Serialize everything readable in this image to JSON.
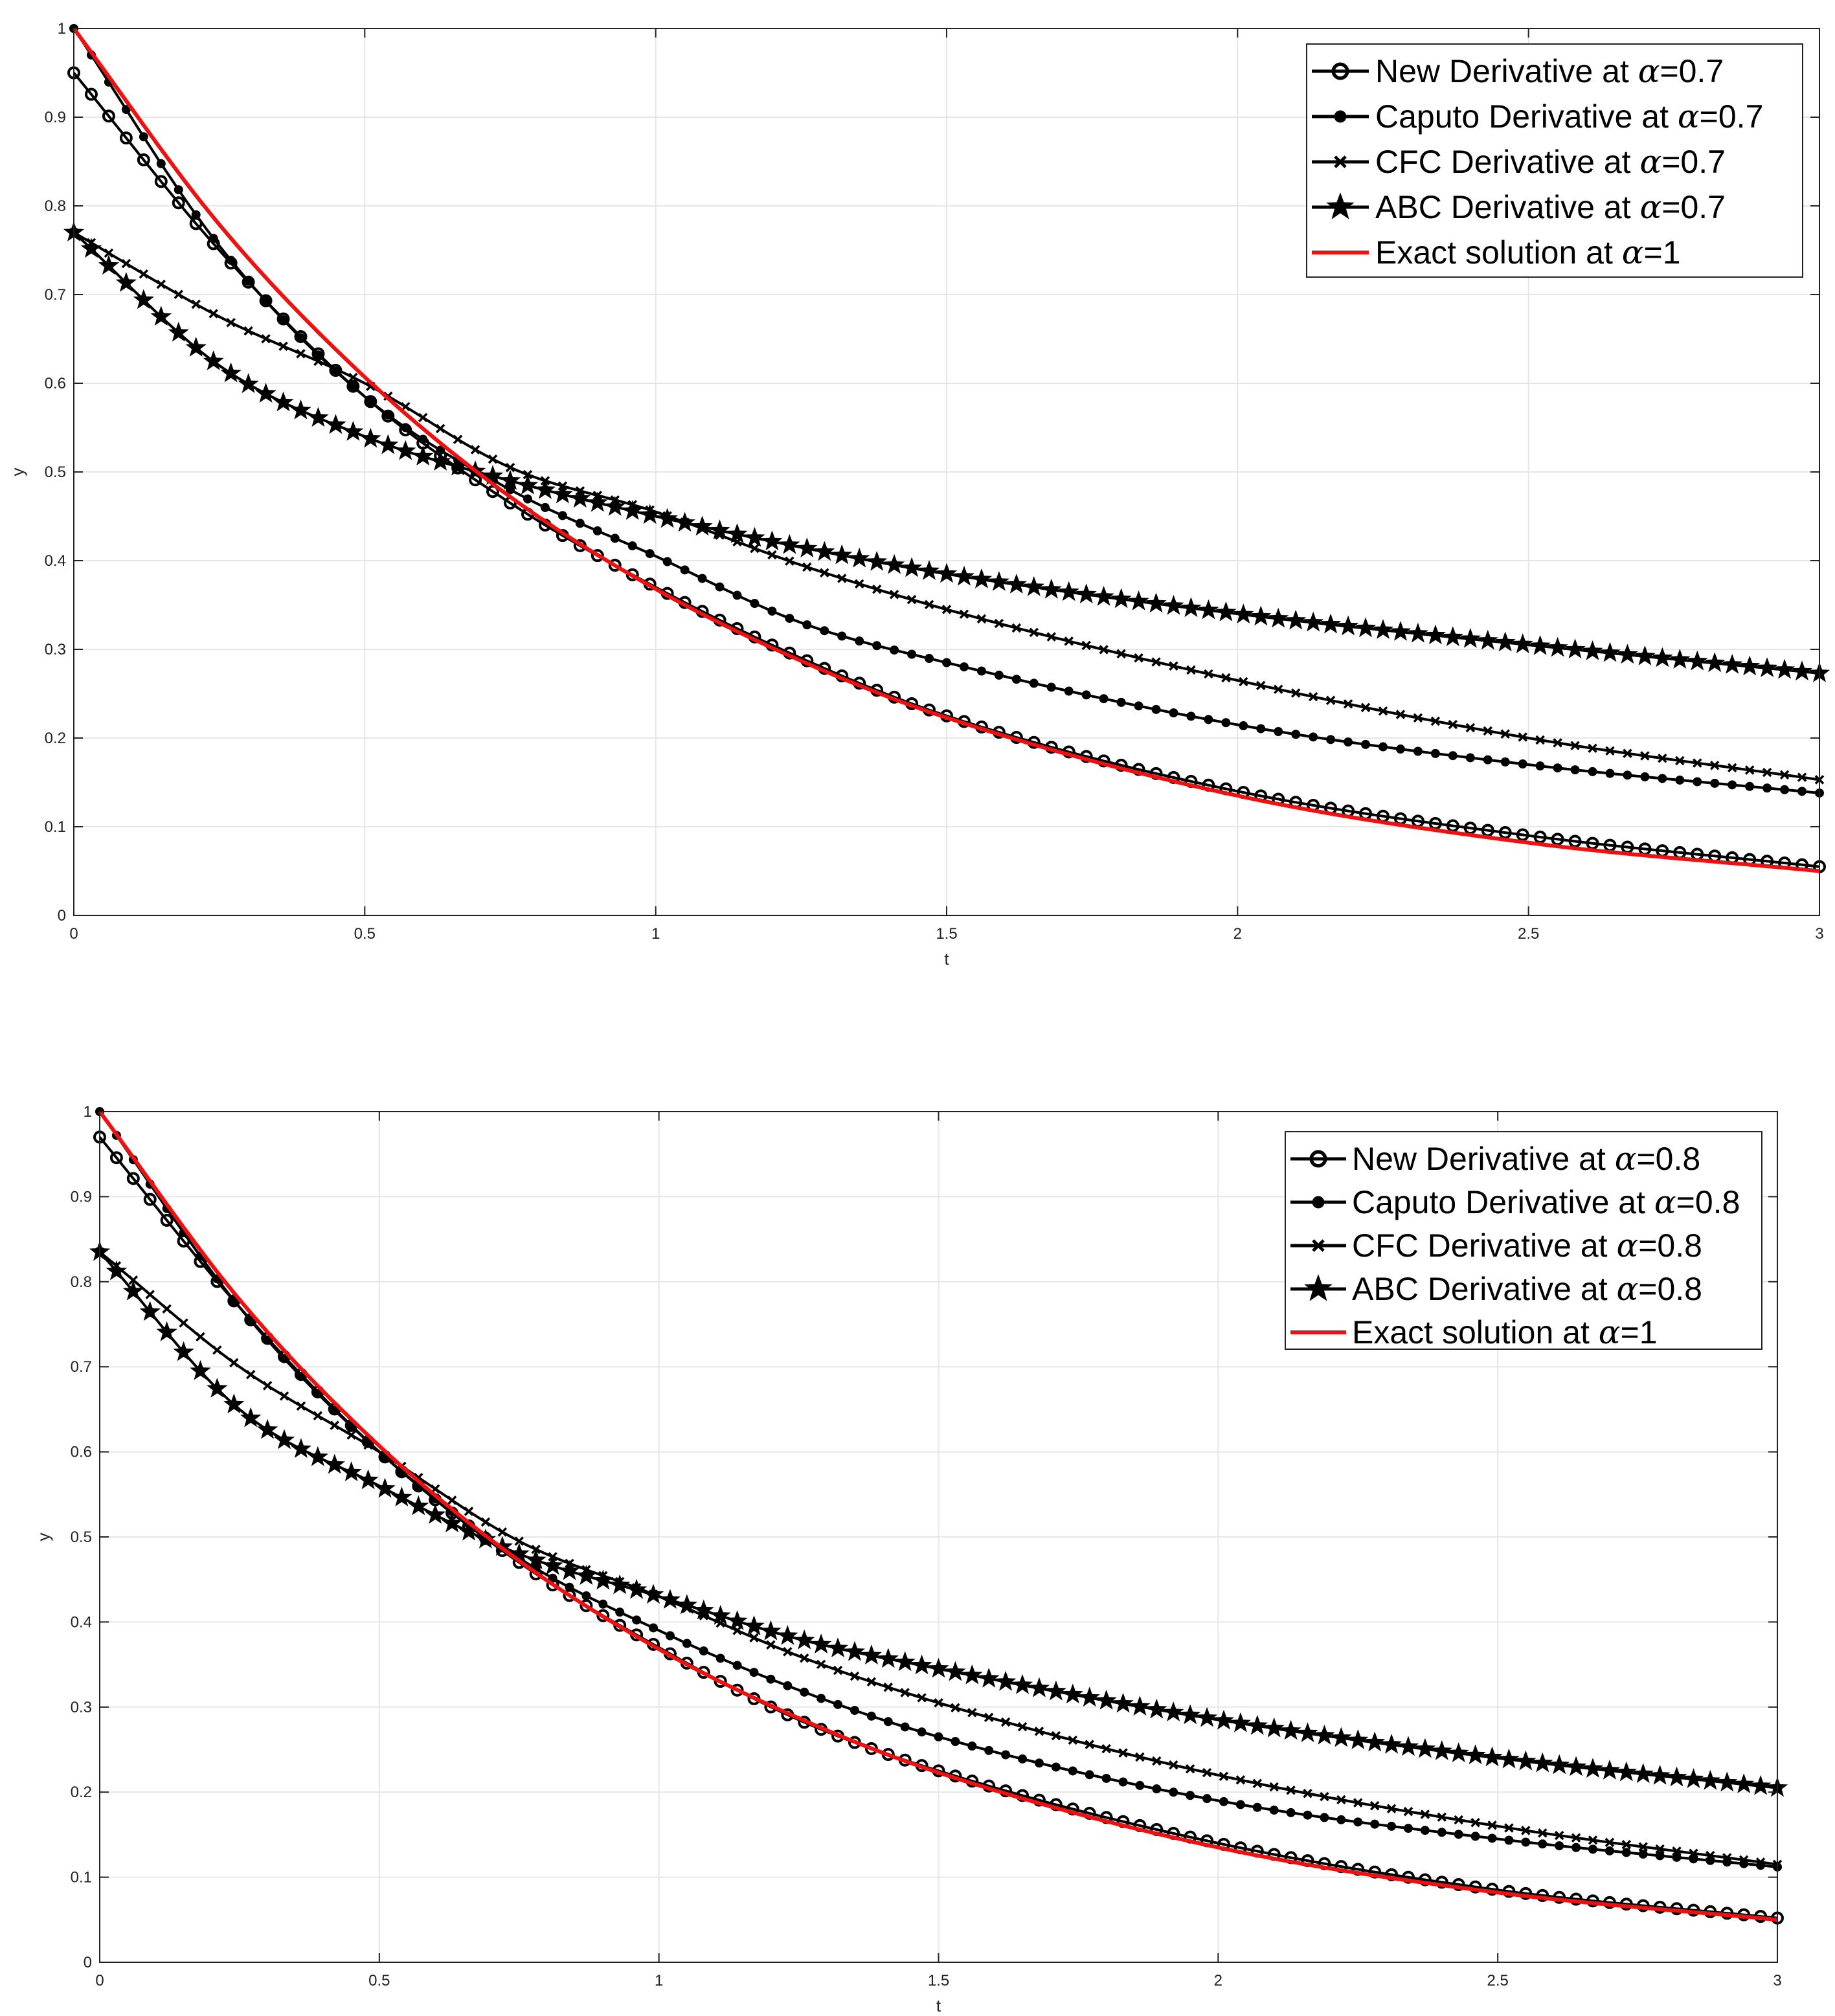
{
  "chart_data": [
    {
      "type": "line",
      "xlabel": "t",
      "ylabel": "y",
      "xlim": [
        0,
        3
      ],
      "ylim": [
        0,
        1
      ],
      "xticks": [
        "0",
        "0.5",
        "1",
        "1.5",
        "2",
        "2.5",
        "3"
      ],
      "yticks": [
        "0",
        "0.1",
        "0.2",
        "0.3",
        "0.4",
        "0.5",
        "0.6",
        "0.7",
        "0.8",
        "0.9",
        "1"
      ],
      "grid": true,
      "legend_position": "top-right",
      "series": [
        {
          "name": "New Derivative at ",
          "alpha_symbol": "α",
          "alpha_value": "=0.7",
          "marker": "open-circle",
          "color": "#000000",
          "x": [
            0,
            0.25,
            0.5,
            0.75,
            1.0,
            1.25,
            1.5,
            2.0,
            2.5,
            3.0
          ],
          "y": [
            0.95,
            0.75,
            0.585,
            0.465,
            0.37,
            0.29,
            0.225,
            0.14,
            0.09,
            0.055
          ]
        },
        {
          "name": "Caputo Derivative at ",
          "alpha_symbol": "α",
          "alpha_value": "=0.7",
          "marker": "filled-circle",
          "color": "#000000",
          "x": [
            0,
            0.25,
            0.5,
            0.75,
            1.0,
            1.25,
            1.5,
            2.0,
            2.5,
            3.0
          ],
          "y": [
            1.0,
            0.755,
            0.585,
            0.48,
            0.405,
            0.33,
            0.285,
            0.215,
            0.17,
            0.138
          ]
        },
        {
          "name": "CFC Derivative at ",
          "alpha_symbol": "α",
          "alpha_value": "=0.7",
          "marker": "x",
          "color": "#000000",
          "x": [
            0,
            0.25,
            0.5,
            0.75,
            1.0,
            1.25,
            1.5,
            2.0,
            2.5,
            3.0
          ],
          "y": [
            0.77,
            0.675,
            0.6,
            0.505,
            0.455,
            0.395,
            0.345,
            0.265,
            0.2,
            0.153
          ]
        },
        {
          "name": "ABC Derivative at ",
          "alpha_symbol": "α",
          "alpha_value": "=0.7",
          "marker": "star",
          "color": "#000000",
          "x": [
            0,
            0.25,
            0.5,
            0.75,
            1.0,
            1.25,
            1.5,
            2.0,
            2.5,
            3.0
          ],
          "y": [
            0.77,
            0.62,
            0.54,
            0.49,
            0.45,
            0.415,
            0.385,
            0.34,
            0.305,
            0.273
          ]
        },
        {
          "name": "Exact solution at ",
          "alpha_symbol": "α",
          "alpha_value": "=1",
          "marker": "none",
          "color": "#ee1111",
          "x": [
            0,
            0.25,
            0.5,
            0.75,
            1.0,
            1.25,
            1.5,
            2.0,
            2.5,
            3.0
          ],
          "y": [
            1.0,
            0.779,
            0.607,
            0.472,
            0.368,
            0.287,
            0.223,
            0.135,
            0.082,
            0.05
          ]
        }
      ]
    },
    {
      "type": "line",
      "xlabel": "t",
      "ylabel": "y",
      "xlim": [
        0,
        3
      ],
      "ylim": [
        0,
        1
      ],
      "xticks": [
        "0",
        "0.5",
        "1",
        "1.5",
        "2",
        "2.5",
        "3"
      ],
      "yticks": [
        "0",
        "0.1",
        "0.2",
        "0.3",
        "0.4",
        "0.5",
        "0.6",
        "0.7",
        "0.8",
        "0.9",
        "1"
      ],
      "grid": true,
      "legend_position": "top-right",
      "series": [
        {
          "name": "New Derivative at ",
          "alpha_symbol": "α",
          "alpha_value": "=0.8",
          "marker": "open-circle",
          "color": "#000000",
          "x": [
            0,
            0.25,
            0.5,
            0.75,
            1.0,
            1.25,
            1.5,
            2.0,
            2.5,
            3.0
          ],
          "y": [
            0.97,
            0.77,
            0.6,
            0.47,
            0.37,
            0.285,
            0.225,
            0.14,
            0.085,
            0.052
          ]
        },
        {
          "name": "Caputo Derivative at ",
          "alpha_symbol": "α",
          "alpha_value": "=0.8",
          "marker": "filled-circle",
          "color": "#000000",
          "x": [
            0,
            0.25,
            0.5,
            0.75,
            1.0,
            1.25,
            1.5,
            2.0,
            2.5,
            3.0
          ],
          "y": [
            1.0,
            0.77,
            0.6,
            0.475,
            0.39,
            0.32,
            0.265,
            0.19,
            0.145,
            0.112
          ]
        },
        {
          "name": "CFC Derivative at ",
          "alpha_symbol": "α",
          "alpha_value": "=0.8",
          "marker": "x",
          "color": "#000000",
          "x": [
            0,
            0.25,
            0.5,
            0.75,
            1.0,
            1.25,
            1.5,
            2.0,
            2.5,
            3.0
          ],
          "y": [
            0.835,
            0.7,
            0.6,
            0.495,
            0.43,
            0.36,
            0.305,
            0.22,
            0.16,
            0.115
          ]
        },
        {
          "name": "ABC Derivative at ",
          "alpha_symbol": "α",
          "alpha_value": "=0.8",
          "marker": "star",
          "color": "#000000",
          "x": [
            0,
            0.25,
            0.5,
            0.75,
            1.0,
            1.25,
            1.5,
            2.0,
            2.5,
            3.0
          ],
          "y": [
            0.835,
            0.65,
            0.56,
            0.48,
            0.43,
            0.38,
            0.345,
            0.285,
            0.24,
            0.205
          ]
        },
        {
          "name": "Exact solution at ",
          "alpha_symbol": "α",
          "alpha_value": "=1",
          "marker": "none",
          "color": "#ee1111",
          "x": [
            0,
            0.25,
            0.5,
            0.75,
            1.0,
            1.25,
            1.5,
            2.0,
            2.5,
            3.0
          ],
          "y": [
            1.0,
            0.779,
            0.607,
            0.472,
            0.368,
            0.287,
            0.223,
            0.135,
            0.082,
            0.05
          ]
        }
      ]
    }
  ]
}
